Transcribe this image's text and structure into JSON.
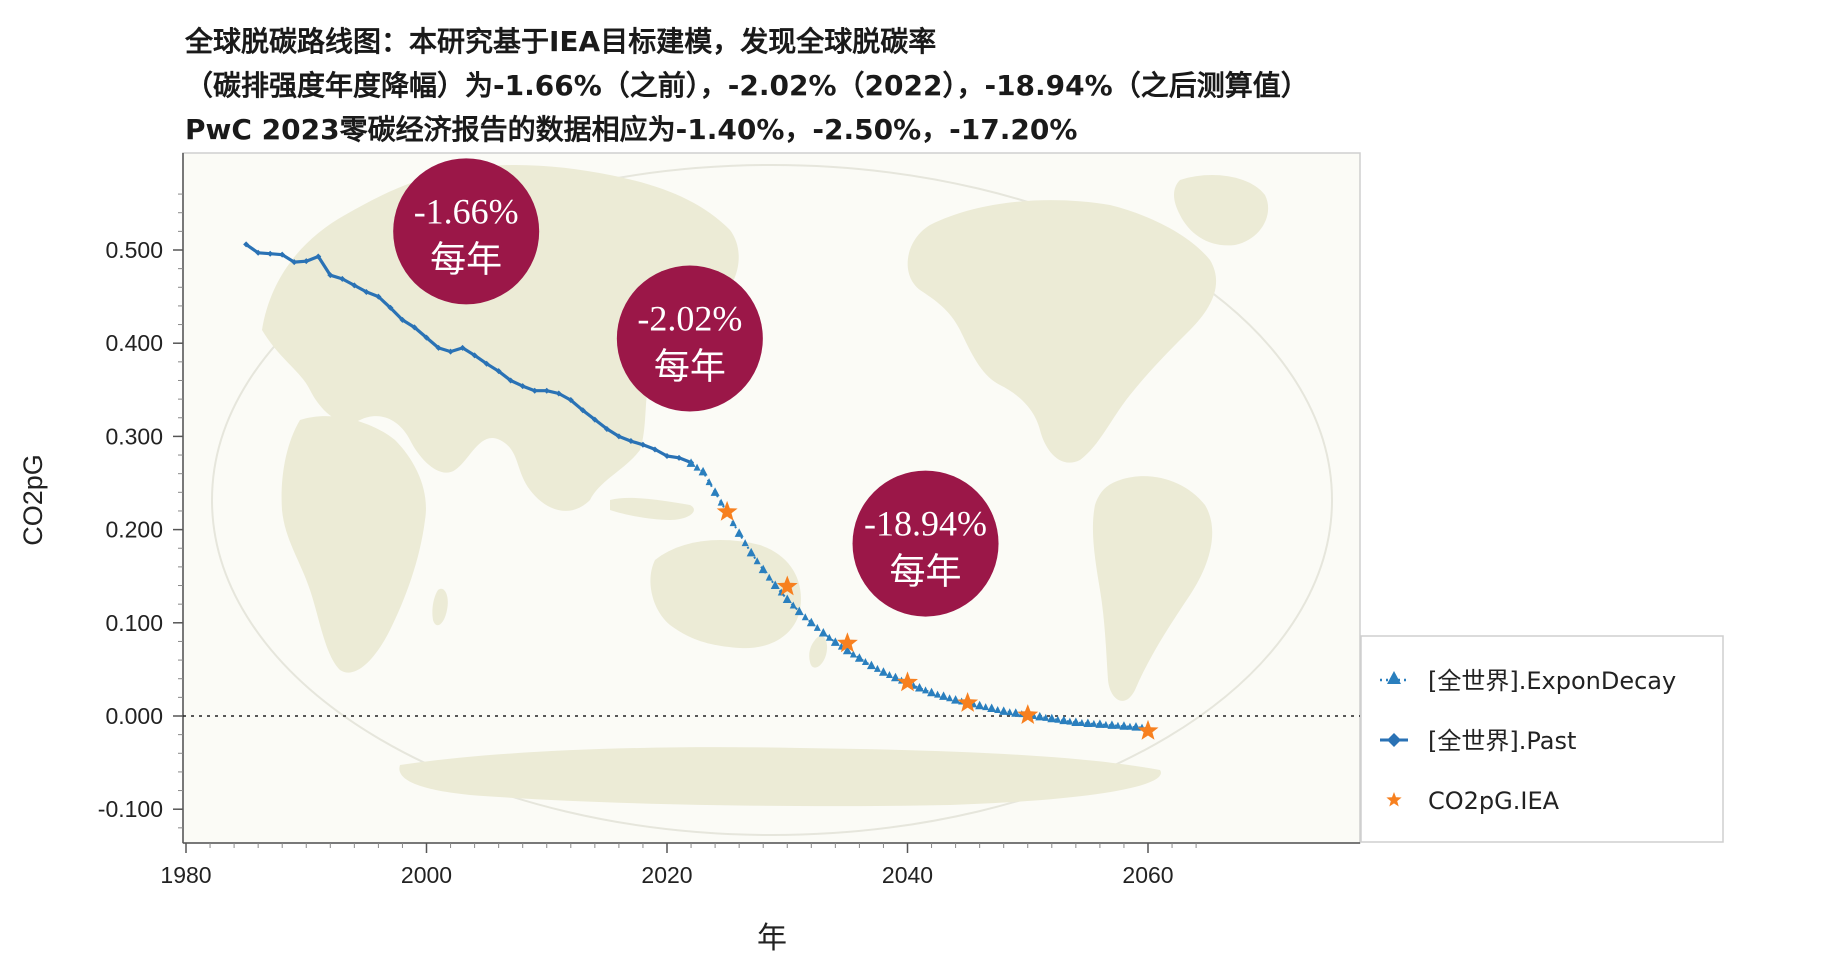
{
  "title": {
    "line1": "全球脱碳路线图：本研究基于IEA目标建模，发现全球脱碳率",
    "line2": "（碳排强度年度降幅）为-1.66%（之前），-2.02%（2022），-18.94%（之后测算值）",
    "line3": "PwC 2023零碳经济报告的数据相应为-1.40%，-2.50%，-17.20%"
  },
  "colors": {
    "past": "#2a72b5",
    "decay": "#2a7fbe",
    "iea": "#f7801f",
    "bubble": "#9b1748",
    "map_land": "#ecebd6",
    "plot_bg": "#fbfbf6"
  },
  "bubbles": [
    {
      "pct": "-1.66%",
      "unit": "每年",
      "x": 2003.3,
      "y": 0.52
    },
    {
      "pct": "-2.02%",
      "unit": "每年",
      "x": 2021.9,
      "y": 0.405
    },
    {
      "pct": "-18.94%",
      "unit": "每年",
      "x": 2041.5,
      "y": 0.185
    }
  ],
  "chart_data": {
    "type": "line",
    "xlabel": "年",
    "ylabel": "CO2pG",
    "xlim": [
      1980,
      2065
    ],
    "ylim": [
      -0.155,
      0.6
    ],
    "x_ticks": [
      1980,
      2000,
      2020,
      2040,
      2060
    ],
    "x_tick_labels": [
      "1980",
      "2000",
      "2020",
      "2040",
      "2060"
    ],
    "y_ticks": [
      -0.1,
      0.0,
      0.1,
      0.2,
      0.3,
      0.4,
      0.5
    ],
    "y_tick_labels": [
      "-0.100",
      "0.000",
      "0.100",
      "0.200",
      "0.300",
      "0.400",
      "0.500"
    ],
    "zero_line": true,
    "grid": false,
    "legend_position": "right",
    "series": [
      {
        "name": "[全世界].ExponDecay",
        "marker": "triangle",
        "style": "dotted",
        "x": [
          2022,
          2023,
          2024,
          2025,
          2026,
          2027,
          2028,
          2029,
          2030,
          2031,
          2032,
          2033,
          2034,
          2035,
          2036,
          2037,
          2038,
          2039,
          2040,
          2041,
          2042,
          2043,
          2044,
          2045,
          2046,
          2047,
          2048,
          2049,
          2050,
          2051,
          2052,
          2053,
          2054,
          2055,
          2056,
          2057,
          2058,
          2059,
          2060
        ],
        "y": [
          0.271,
          0.262,
          0.24,
          0.218,
          0.196,
          0.175,
          0.157,
          0.14,
          0.125,
          0.112,
          0.1,
          0.089,
          0.079,
          0.07,
          0.062,
          0.054,
          0.047,
          0.041,
          0.035,
          0.03,
          0.025,
          0.021,
          0.017,
          0.014,
          0.011,
          0.008,
          0.005,
          0.003,
          0.001,
          -0.001,
          -0.003,
          -0.005,
          -0.007,
          -0.008,
          -0.009,
          -0.01,
          -0.011,
          -0.012,
          -0.013
        ]
      },
      {
        "name": "[全世界].Past",
        "marker": "diamond",
        "style": "solid",
        "x": [
          1985,
          1986,
          1987,
          1988,
          1989,
          1990,
          1991,
          1992,
          1993,
          1994,
          1995,
          1996,
          1997,
          1998,
          1999,
          2000,
          2001,
          2002,
          2003,
          2004,
          2005,
          2006,
          2007,
          2008,
          2009,
          2010,
          2011,
          2012,
          2013,
          2014,
          2015,
          2016,
          2017,
          2018,
          2019,
          2020,
          2021,
          2022
        ],
        "y": [
          0.506,
          0.497,
          0.496,
          0.495,
          0.487,
          0.488,
          0.493,
          0.473,
          0.469,
          0.462,
          0.455,
          0.45,
          0.438,
          0.425,
          0.417,
          0.406,
          0.395,
          0.391,
          0.395,
          0.387,
          0.378,
          0.37,
          0.36,
          0.354,
          0.349,
          0.349,
          0.346,
          0.339,
          0.328,
          0.318,
          0.308,
          0.3,
          0.295,
          0.291,
          0.286,
          0.279,
          0.277,
          0.272
        ]
      },
      {
        "name": "CO2pG.IEA",
        "marker": "star",
        "style": "none",
        "x": [
          2025,
          2030,
          2035,
          2040,
          2045,
          2050,
          2060
        ],
        "y": [
          0.219,
          0.139,
          0.078,
          0.036,
          0.014,
          0.001,
          -0.016
        ]
      }
    ]
  }
}
